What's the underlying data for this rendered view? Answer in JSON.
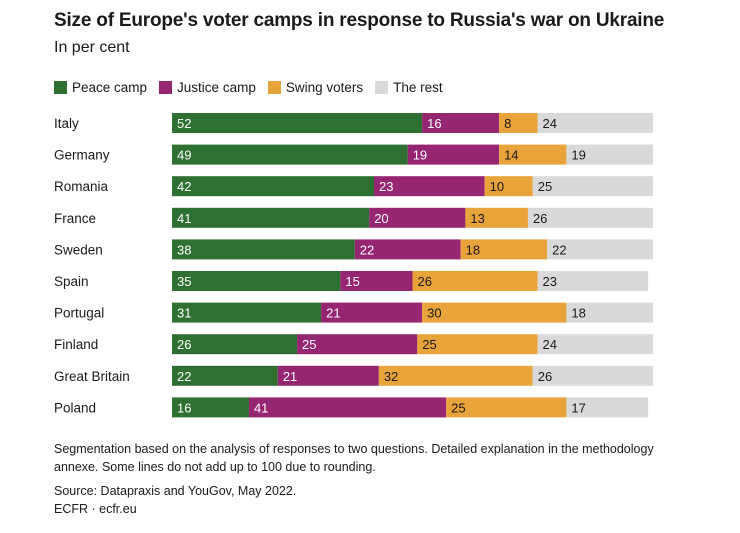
{
  "chart_data": {
    "type": "bar",
    "orientation": "horizontal",
    "stacked": true,
    "title": "Size of Europe's voter camps in response to Russia's war on Ukraine",
    "subtitle": "In per cent",
    "legend_position": "top-left",
    "xlim": [
      0,
      100
    ],
    "grid": false,
    "categories": [
      "Italy",
      "Germany",
      "Romania",
      "France",
      "Sweden",
      "Spain",
      "Portugal",
      "Finland",
      "Great Britain",
      "Poland"
    ],
    "series": [
      {
        "name": "Peace camp",
        "color": "#2e7031",
        "label_color": "#ffffff",
        "values": [
          52,
          49,
          42,
          41,
          38,
          35,
          31,
          26,
          22,
          16
        ]
      },
      {
        "name": "Justice camp",
        "color": "#962572",
        "label_color": "#ffffff",
        "values": [
          16,
          19,
          23,
          20,
          22,
          15,
          21,
          25,
          21,
          41
        ]
      },
      {
        "name": "Swing voters",
        "color": "#e8a33a",
        "label_color": "#1a1a1a",
        "values": [
          8,
          14,
          10,
          13,
          18,
          26,
          30,
          25,
          32,
          25
        ]
      },
      {
        "name": "The rest",
        "color": "#d9d9d9",
        "label_color": "#1a1a1a",
        "values": [
          24,
          19,
          25,
          26,
          22,
          23,
          18,
          24,
          26,
          17
        ]
      }
    ]
  },
  "notes": {
    "footnote": "Segmentation based on the analysis of responses to two questions. Detailed explanation in the methodology annexe. Some lines do not add up to 100 due to rounding.",
    "source": "Source: Datapraxis and YouGov, May 2022.",
    "credit": "ECFR · ecfr.eu"
  }
}
